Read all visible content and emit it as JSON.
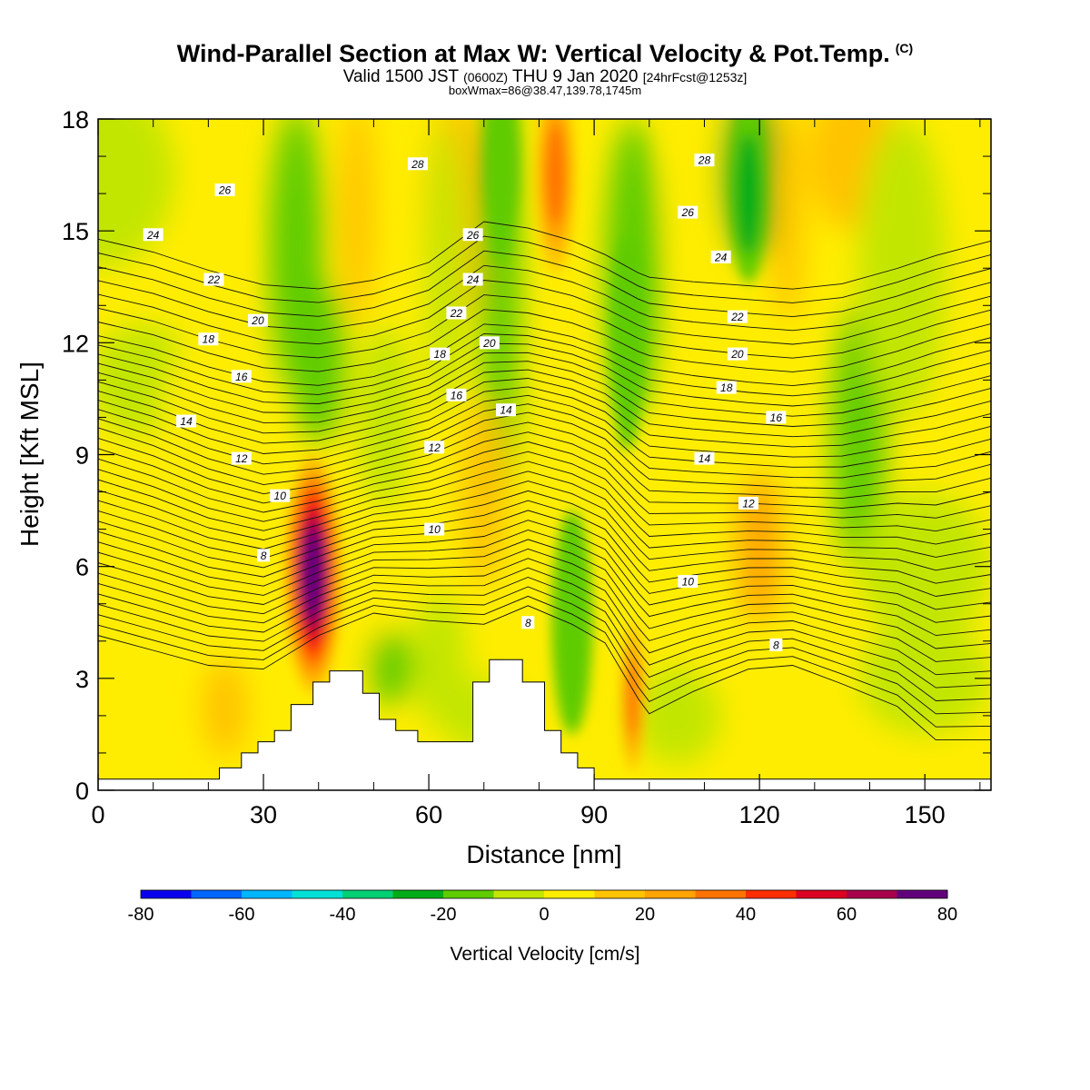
{
  "title": {
    "main": "Wind-Parallel Section at Max W: Vertical Velocity & Pot.Temp.",
    "copyright": "(C)",
    "valid_prefix": "Valid 1500 JST",
    "valid_utc": "(0600Z)",
    "valid_date": "THU 9 Jan 2020",
    "forecast": "[24hrFcst@1253z]",
    "box": "boxWmax=86@38.47,139.78,1745m"
  },
  "chart_data": {
    "type": "heatmap",
    "xlabel": "Distance [nm]",
    "ylabel": "Height [Kft MSL]",
    "xlim": [
      0,
      162
    ],
    "ylim": [
      0,
      18
    ],
    "xticks": [
      0,
      30,
      60,
      90,
      120,
      150
    ],
    "yticks": [
      0,
      3,
      6,
      9,
      12,
      15,
      18
    ],
    "colorbar": {
      "title": "Vertical Velocity [cm/s]",
      "ticks": [
        -80,
        -60,
        -40,
        -20,
        0,
        20,
        40,
        60,
        80
      ],
      "colors": [
        "#0b00ee",
        "#0066ff",
        "#00b6ff",
        "#00e0d6",
        "#00cf74",
        "#00ad18",
        "#5fcc00",
        "#c3e600",
        "#ffed00",
        "#ffc300",
        "#ffa400",
        "#ff7300",
        "#ff2d00",
        "#dc0022",
        "#a8004a",
        "#62007c"
      ]
    },
    "vertical_velocity_features": [
      {
        "x": 39,
        "z": 5.8,
        "value": 86
      },
      {
        "x": 83,
        "z": 16.5,
        "value": 40
      },
      {
        "x": 97,
        "z": 2.5,
        "value": 35
      },
      {
        "x": 86,
        "z": 4.5,
        "value": -20
      },
      {
        "x": 118,
        "z": 16,
        "value": -25
      },
      {
        "x": 96,
        "z": 12,
        "value": -20
      },
      {
        "x": 73,
        "z": 17,
        "value": -20
      },
      {
        "x": 37,
        "z": 15,
        "value": -10
      }
    ],
    "terrain": [
      [
        0,
        0.3
      ],
      [
        22,
        0.3
      ],
      [
        22,
        0.6
      ],
      [
        26,
        0.6
      ],
      [
        26,
        1.0
      ],
      [
        29,
        1.0
      ],
      [
        29,
        1.3
      ],
      [
        32,
        1.3
      ],
      [
        32,
        1.6
      ],
      [
        35,
        1.6
      ],
      [
        35,
        2.3
      ],
      [
        39,
        2.3
      ],
      [
        39,
        2.9
      ],
      [
        42,
        2.9
      ],
      [
        42,
        3.2
      ],
      [
        48,
        3.2
      ],
      [
        48,
        2.6
      ],
      [
        51,
        2.6
      ],
      [
        51,
        1.9
      ],
      [
        54,
        1.9
      ],
      [
        54,
        1.6
      ],
      [
        58,
        1.6
      ],
      [
        58,
        1.3
      ],
      [
        68,
        1.3
      ],
      [
        68,
        2.9
      ],
      [
        71,
        2.9
      ],
      [
        71,
        3.5
      ],
      [
        77,
        3.5
      ],
      [
        77,
        2.9
      ],
      [
        81,
        2.9
      ],
      [
        81,
        1.6
      ],
      [
        84,
        1.6
      ],
      [
        84,
        1.0
      ],
      [
        87,
        1.0
      ],
      [
        87,
        0.6
      ],
      [
        90,
        0.6
      ],
      [
        90,
        0.3
      ],
      [
        162,
        0.3
      ]
    ],
    "potential_temperature_labels": [
      {
        "text": "8",
        "x": 30,
        "z": 6.3
      },
      {
        "text": "8",
        "x": 78,
        "z": 4.5
      },
      {
        "text": "8",
        "x": 123,
        "z": 3.9
      },
      {
        "text": "10",
        "x": 33,
        "z": 7.9
      },
      {
        "text": "10",
        "x": 61,
        "z": 7.0
      },
      {
        "text": "10",
        "x": 107,
        "z": 5.6
      },
      {
        "text": "12",
        "x": 26,
        "z": 8.9
      },
      {
        "text": "12",
        "x": 61,
        "z": 9.2
      },
      {
        "text": "12",
        "x": 118,
        "z": 7.7
      },
      {
        "text": "14",
        "x": 16,
        "z": 9.9
      },
      {
        "text": "14",
        "x": 74,
        "z": 10.2
      },
      {
        "text": "14",
        "x": 110,
        "z": 8.9
      },
      {
        "text": "16",
        "x": 26,
        "z": 11.1
      },
      {
        "text": "16",
        "x": 65,
        "z": 10.6
      },
      {
        "text": "16",
        "x": 123,
        "z": 10.0
      },
      {
        "text": "18",
        "x": 20,
        "z": 12.1
      },
      {
        "text": "18",
        "x": 62,
        "z": 11.7
      },
      {
        "text": "18",
        "x": 114,
        "z": 10.8
      },
      {
        "text": "20",
        "x": 29,
        "z": 12.6
      },
      {
        "text": "20",
        "x": 71,
        "z": 12.0
      },
      {
        "text": "20",
        "x": 116,
        "z": 11.7
      },
      {
        "text": "22",
        "x": 21,
        "z": 13.7
      },
      {
        "text": "22",
        "x": 65,
        "z": 12.8
      },
      {
        "text": "22",
        "x": 116,
        "z": 12.7
      },
      {
        "text": "24",
        "x": 10,
        "z": 14.9
      },
      {
        "text": "24",
        "x": 68,
        "z": 13.7
      },
      {
        "text": "24",
        "x": 113,
        "z": 14.3
      },
      {
        "text": "26",
        "x": 23,
        "z": 16.1
      },
      {
        "text": "26",
        "x": 68,
        "z": 14.9
      },
      {
        "text": "26",
        "x": 107,
        "z": 15.5
      },
      {
        "text": "28",
        "x": 58,
        "z": 16.8
      },
      {
        "text": "28",
        "x": 110,
        "z": 16.9
      }
    ]
  }
}
